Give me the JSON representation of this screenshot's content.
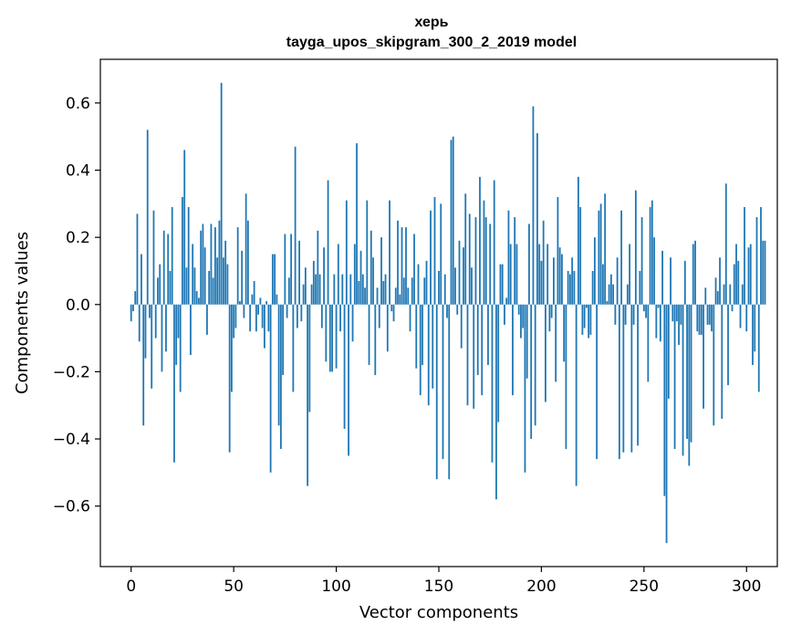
{
  "chart_data": {
    "type": "bar",
    "title": "херь",
    "subtitle": "tayga_upos_skipgram_300_2_2019 model",
    "xlabel": "Vector components",
    "ylabel": "Components values",
    "xlim": [
      -15,
      315
    ],
    "ylim": [
      -0.78,
      0.73
    ],
    "xticks": [
      0,
      50,
      100,
      150,
      200,
      250,
      300
    ],
    "xtick_labels": [
      "0",
      "50",
      "100",
      "150",
      "200",
      "250",
      "300"
    ],
    "yticks": [
      0.6,
      0.4,
      0.2,
      0.0,
      -0.2,
      -0.4,
      -0.6
    ],
    "ytick_labels": [
      "0.6",
      "0.4",
      "0.2",
      "0.0",
      "−0.2",
      "−0.4",
      "−0.6"
    ],
    "bar_color": "#1f77b4",
    "grid": false,
    "values": [
      -0.05,
      -0.02,
      0.04,
      0.27,
      -0.11,
      0.15,
      -0.36,
      -0.16,
      0.52,
      -0.04,
      -0.25,
      0.28,
      -0.1,
      0.08,
      0.12,
      -0.2,
      0.22,
      -0.14,
      0.21,
      0.1,
      0.29,
      -0.47,
      -0.18,
      -0.1,
      -0.26,
      0.32,
      0.46,
      0.11,
      0.29,
      -0.15,
      0.18,
      0.11,
      0.04,
      0.02,
      0.22,
      0.24,
      0.17,
      -0.09,
      0.1,
      0.24,
      0.08,
      0.23,
      0.14,
      0.25,
      0.66,
      0.14,
      0.19,
      0.12,
      -0.44,
      -0.26,
      -0.1,
      -0.07,
      0.23,
      0.01,
      0.16,
      -0.04,
      0.33,
      0.25,
      -0.08,
      0.03,
      0.07,
      -0.08,
      -0.03,
      0.02,
      -0.07,
      -0.13,
      0.01,
      -0.08,
      -0.5,
      0.15,
      0.15,
      0.03,
      -0.36,
      -0.43,
      -0.21,
      0.21,
      -0.04,
      0.08,
      0.21,
      -0.26,
      0.47,
      -0.07,
      0.19,
      -0.05,
      0.06,
      0.11,
      -0.54,
      -0.32,
      0.06,
      0.13,
      0.09,
      0.22,
      0.09,
      -0.07,
      0.17,
      -0.17,
      0.37,
      -0.2,
      -0.2,
      0.09,
      -0.19,
      0.18,
      -0.08,
      0.09,
      -0.37,
      0.31,
      -0.45,
      0.09,
      -0.11,
      0.18,
      0.48,
      0.07,
      0.16,
      0.09,
      0.05,
      0.31,
      -0.18,
      0.22,
      0.14,
      -0.21,
      0.05,
      -0.07,
      0.2,
      0.07,
      0.09,
      -0.14,
      0.31,
      -0.02,
      -0.05,
      0.05,
      0.25,
      0.03,
      0.23,
      0.08,
      0.23,
      0.05,
      -0.08,
      0.08,
      0.21,
      -0.19,
      0.12,
      -0.27,
      -0.18,
      0.08,
      0.13,
      -0.3,
      0.28,
      -0.25,
      0.32,
      -0.52,
      0.1,
      0.3,
      -0.46,
      0.09,
      -0.04,
      -0.52,
      0.49,
      0.5,
      0.11,
      -0.03,
      0.19,
      -0.13,
      0.17,
      0.33,
      -0.3,
      0.27,
      0.11,
      -0.31,
      0.26,
      -0.21,
      0.38,
      -0.27,
      0.31,
      0.26,
      -0.18,
      0.24,
      -0.47,
      0.37,
      -0.58,
      -0.35,
      0.12,
      0.12,
      -0.06,
      0.02,
      0.28,
      0.18,
      -0.27,
      0.26,
      0.18,
      -0.03,
      -0.1,
      -0.07,
      -0.5,
      -0.22,
      0.24,
      -0.4,
      0.59,
      -0.36,
      0.51,
      0.18,
      0.13,
      0.25,
      -0.29,
      0.18,
      -0.08,
      -0.04,
      0.14,
      -0.23,
      0.32,
      0.17,
      0.15,
      -0.17,
      -0.43,
      0.1,
      0.09,
      0.14,
      0.1,
      -0.54,
      0.38,
      0.29,
      -0.09,
      -0.07,
      -0.01,
      -0.1,
      -0.09,
      0.1,
      0.2,
      -0.46,
      0.28,
      0.3,
      0.12,
      0.33,
      0.01,
      0.06,
      0.09,
      0.06,
      -0.06,
      0.14,
      -0.46,
      0.28,
      -0.44,
      -0.06,
      0.06,
      0.18,
      -0.44,
      -0.06,
      0.34,
      -0.42,
      0.1,
      0.26,
      -0.02,
      -0.04,
      -0.23,
      0.29,
      0.31,
      0.2,
      -0.1,
      -0.01,
      -0.11,
      0.16,
      -0.57,
      -0.71,
      -0.28,
      0.14,
      -0.05,
      -0.43,
      -0.05,
      -0.12,
      -0.06,
      -0.45,
      0.13,
      -0.4,
      -0.48,
      -0.41,
      0.18,
      0.19,
      -0.08,
      -0.09,
      -0.09,
      -0.31,
      0.05,
      -0.06,
      -0.06,
      -0.08,
      -0.36,
      0.08,
      0.04,
      0.14,
      -0.34,
      0.06,
      0.36,
      -0.24,
      0.06,
      -0.02,
      0.12,
      0.18,
      0.13,
      -0.07,
      0.06,
      0.29,
      -0.08,
      0.17,
      0.18,
      -0.18,
      -0.14,
      0.26,
      -0.26,
      0.29,
      0.19,
      0.19
    ]
  }
}
